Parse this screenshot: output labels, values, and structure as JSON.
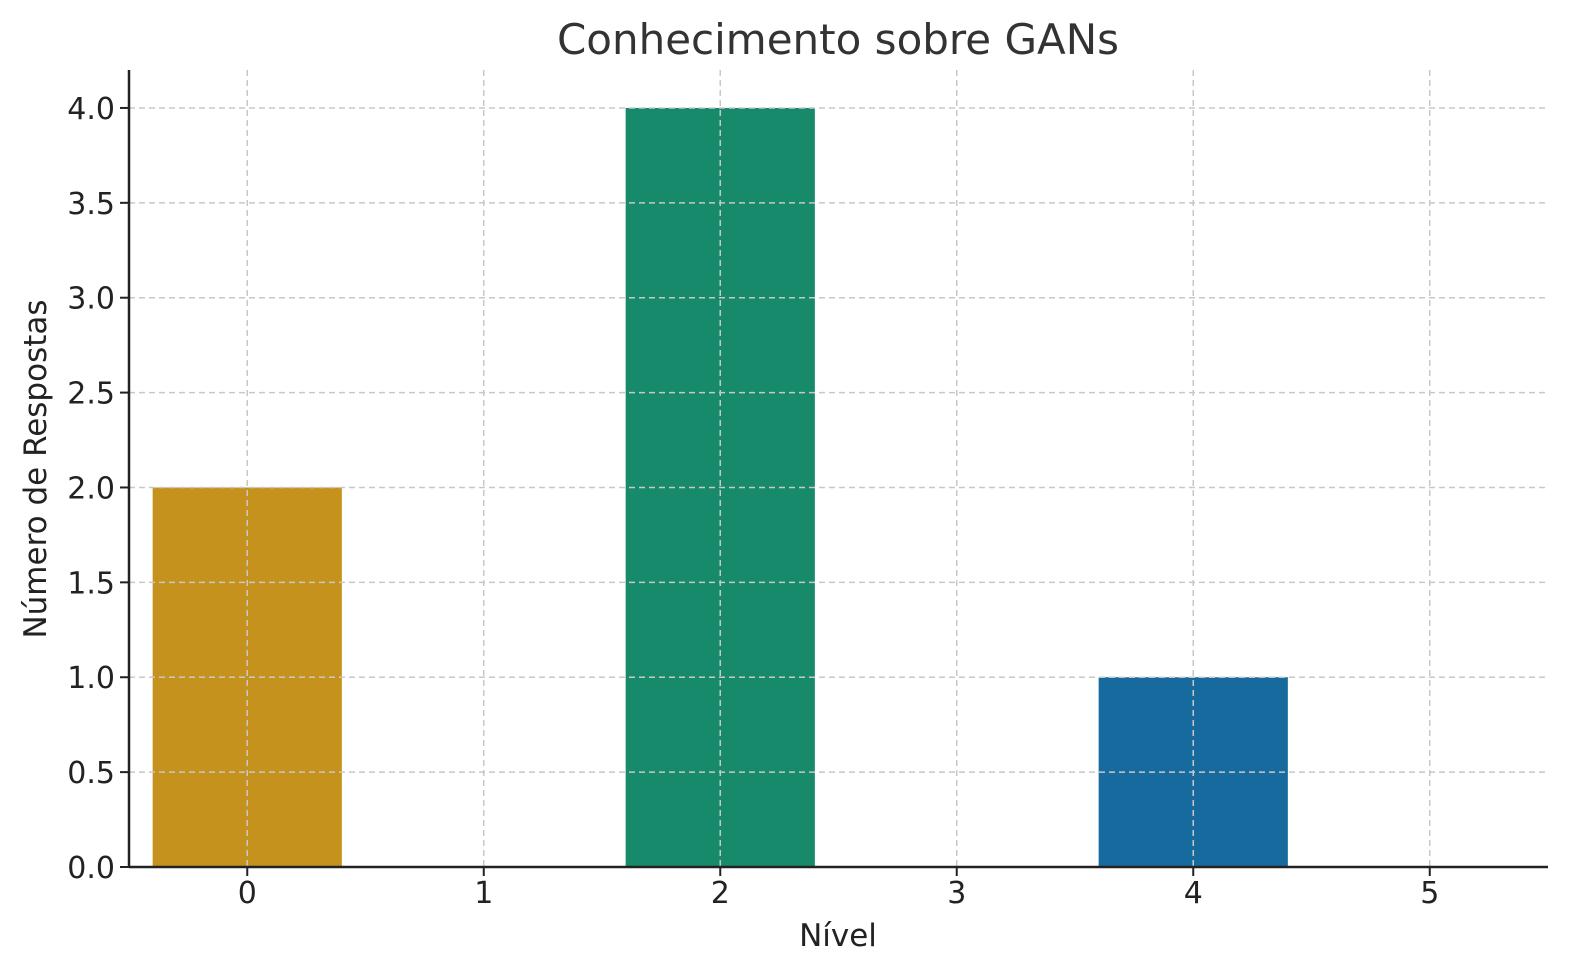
{
  "chart_data": {
    "type": "bar",
    "title": "Conhecimento sobre GANs",
    "xlabel": "Nível",
    "ylabel": "Número de Respostas",
    "categories": [
      0,
      2,
      4
    ],
    "values": [
      2,
      4,
      1
    ],
    "colors": [
      "#c6921e",
      "#168a6a",
      "#176a9e"
    ],
    "xticks": [
      "0",
      "1",
      "2",
      "3",
      "4",
      "5"
    ],
    "yticks": [
      "0.0",
      "0.5",
      "1.0",
      "1.5",
      "2.0",
      "2.5",
      "3.0",
      "3.5",
      "4.0"
    ],
    "xlim": [
      -0.5,
      5.5
    ],
    "ylim": [
      0,
      4.2
    ],
    "bar_width": 0.8,
    "grid": true
  }
}
